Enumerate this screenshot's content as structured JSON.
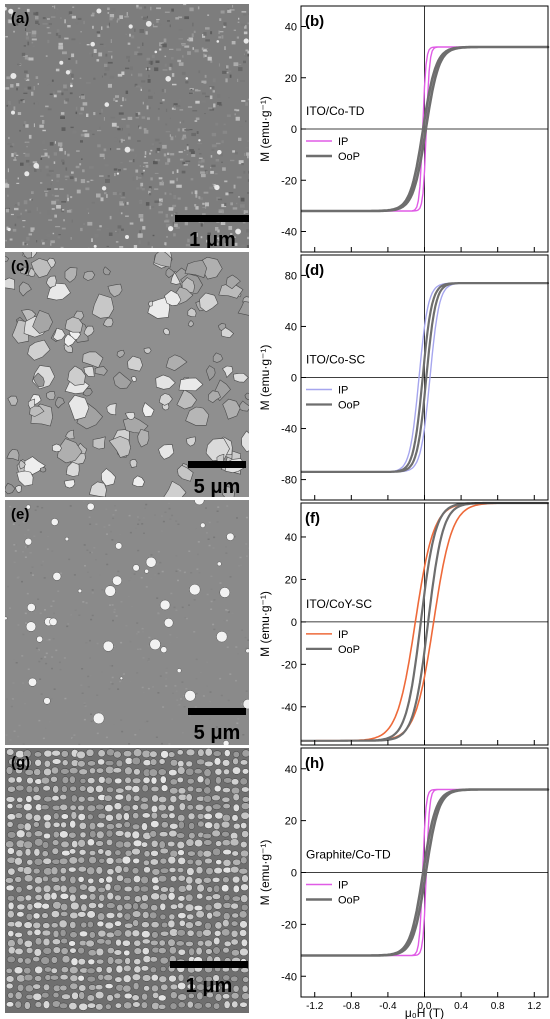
{
  "panels": {
    "sem": [
      {
        "label": "(a)",
        "scale": "1 μm",
        "kind": "fine"
      },
      {
        "label": "(c)",
        "scale": "5 μm",
        "kind": "flakes"
      },
      {
        "label": "(e)",
        "scale": "5 μm",
        "kind": "sparse"
      },
      {
        "label": "(g)",
        "scale": "1 μm",
        "kind": "grains"
      }
    ]
  },
  "axes": {
    "ylabel": "M (emu·g⁻¹)",
    "xlabel": "μ₀H (T)",
    "xticks": [
      "-1.2",
      "-0.8",
      "-0.4",
      "0.0",
      "0.4",
      "0.8",
      "1.2"
    ]
  },
  "chart_data": [
    {
      "type": "line",
      "panel": "(b)",
      "sample": "ITO/Co-TD",
      "xlim": [
        -1.35,
        1.35
      ],
      "ylim": [
        -48,
        48
      ],
      "yticks": [
        -40,
        -20,
        0,
        20,
        40
      ],
      "series": [
        {
          "name": "IP",
          "color": "#e05ce6",
          "Ms": 32,
          "Hc": 0.02,
          "w": 0.035,
          "width": 1.4
        },
        {
          "name": "OoP",
          "color": "#6e6e6e",
          "Ms": 32,
          "Hc": 0.015,
          "w": 0.14,
          "width": 2.6
        }
      ]
    },
    {
      "type": "line",
      "panel": "(d)",
      "sample": "ITO/Co-SC",
      "xlim": [
        -1.35,
        1.35
      ],
      "ylim": [
        -96,
        96
      ],
      "yticks": [
        -80,
        -40,
        0,
        40,
        80
      ],
      "series": [
        {
          "name": "IP",
          "color": "#a6a6ee",
          "Ms": 74,
          "Hc": 0.06,
          "w": 0.1,
          "width": 1.4
        },
        {
          "name": "OoP",
          "color": "#6e6e6e",
          "Ms": 74,
          "Hc": 0.02,
          "w": 0.1,
          "width": 2.2
        }
      ]
    },
    {
      "type": "line",
      "panel": "(f)",
      "sample": "ITO/CoY-SC",
      "xlim": [
        -1.35,
        1.35
      ],
      "ylim": [
        -58,
        56
      ],
      "yticks": [
        -40,
        -20,
        0,
        20,
        40
      ],
      "series": [
        {
          "name": "IP",
          "color": "#ee6a3a",
          "Ms": 56,
          "Hc": 0.1,
          "w": 0.2,
          "width": 1.6
        },
        {
          "name": "OoP",
          "color": "#6e6e6e",
          "Ms": 56,
          "Hc": 0.04,
          "w": 0.16,
          "width": 2.2
        }
      ]
    },
    {
      "type": "line",
      "panel": "(h)",
      "sample": "Graphite/Co-TD",
      "xlim": [
        -1.35,
        1.35
      ],
      "ylim": [
        -48,
        48
      ],
      "yticks": [
        -40,
        -20,
        0,
        20,
        40
      ],
      "series": [
        {
          "name": "IP",
          "color": "#e05ce6",
          "Ms": 32,
          "Hc": 0.02,
          "w": 0.035,
          "width": 1.4
        },
        {
          "name": "OoP",
          "color": "#6e6e6e",
          "Ms": 32,
          "Hc": 0.015,
          "w": 0.14,
          "width": 2.6
        }
      ]
    }
  ]
}
